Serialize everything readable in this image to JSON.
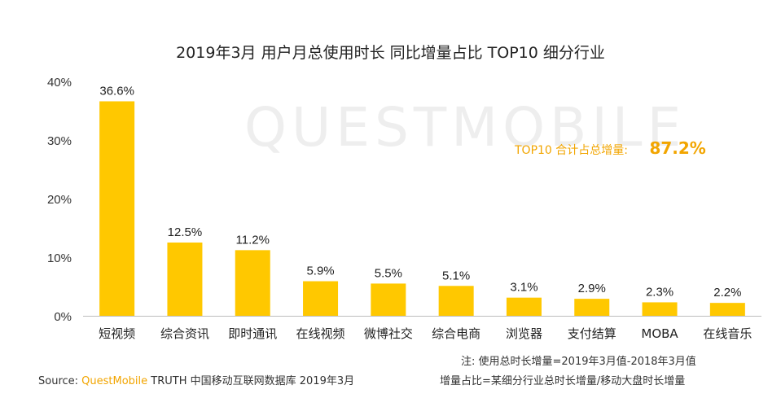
{
  "chart_data": {
    "type": "bar",
    "title": "2019年3月 用户月总使用时长 同比增量占比 TOP10 细分行业",
    "categories": [
      "短视频",
      "综合资讯",
      "即时通讯",
      "在线视频",
      "微博社交",
      "综合电商",
      "浏览器",
      "支付结算",
      "MOBA",
      "在线音乐"
    ],
    "values": [
      36.6,
      12.5,
      11.2,
      5.9,
      5.5,
      5.1,
      3.1,
      2.9,
      2.3,
      2.2
    ],
    "value_labels": [
      "36.6%",
      "12.5%",
      "11.2%",
      "5.9%",
      "5.5%",
      "5.1%",
      "3.1%",
      "2.9%",
      "2.3%",
      "2.2%"
    ],
    "y_ticks": [
      "0%",
      "10%",
      "20%",
      "30%",
      "40%"
    ],
    "ylim": [
      0,
      40
    ],
    "xlabel": "",
    "ylabel": "",
    "grid": false,
    "bar_color": "#ffc800"
  },
  "watermark": "QUESTMOBILE",
  "callout": {
    "label": "TOP10 合计占总增量:",
    "value": "87.2%"
  },
  "notes": {
    "line1": "注: 使用总时长增量=2019年3月值-2018年3月值",
    "line2": "增量占比=某细分行业总时长增量/移动大盘时长增量"
  },
  "source": {
    "prefix": "Source:",
    "brand": "QuestMobile",
    "rest": "TRUTH 中国移动互联网数据库 2019年3月"
  },
  "colors": {
    "accent": "#f2a500",
    "bar": "#ffc800",
    "axis": "#bdbdbd"
  }
}
